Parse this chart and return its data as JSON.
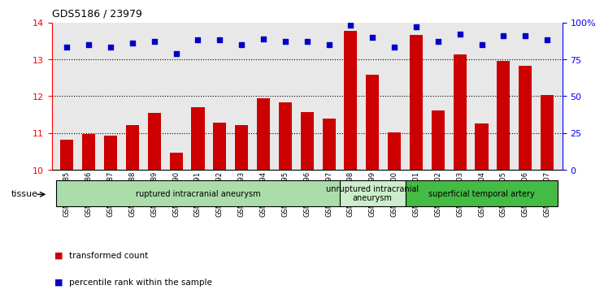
{
  "title": "GDS5186 / 23979",
  "samples": [
    "GSM1306885",
    "GSM1306886",
    "GSM1306887",
    "GSM1306888",
    "GSM1306889",
    "GSM1306890",
    "GSM1306891",
    "GSM1306892",
    "GSM1306893",
    "GSM1306894",
    "GSM1306895",
    "GSM1306896",
    "GSM1306897",
    "GSM1306898",
    "GSM1306899",
    "GSM1306900",
    "GSM1306901",
    "GSM1306902",
    "GSM1306903",
    "GSM1306904",
    "GSM1306905",
    "GSM1306906",
    "GSM1306907"
  ],
  "bar_values": [
    10.82,
    10.98,
    10.92,
    11.22,
    11.55,
    10.46,
    11.7,
    11.28,
    11.22,
    11.93,
    11.82,
    11.57,
    11.38,
    13.78,
    12.57,
    11.02,
    13.65,
    11.6,
    13.12,
    11.25,
    12.95,
    12.82,
    12.03
  ],
  "scatter_values": [
    83,
    85,
    83,
    86,
    87,
    79,
    88,
    88,
    85,
    89,
    87,
    87,
    85,
    98,
    90,
    83,
    97,
    87,
    92,
    85,
    91,
    91,
    88
  ],
  "ylim_left": [
    10,
    14
  ],
  "ylim_right": [
    0,
    100
  ],
  "yticks_left": [
    10,
    11,
    12,
    13,
    14
  ],
  "yticks_right": [
    0,
    25,
    50,
    75,
    100
  ],
  "ytick_labels_right": [
    "0",
    "25",
    "50",
    "75",
    "100%"
  ],
  "bar_color": "#cc0000",
  "scatter_color": "#0000cc",
  "bg_color": "#e8e8e8",
  "plot_bg": "#ffffff",
  "tissue_groups": [
    {
      "label": "ruptured intracranial aneurysm",
      "start": 0,
      "end": 13,
      "color": "#aaddaa"
    },
    {
      "label": "unruptured intracranial\naneurysm",
      "start": 13,
      "end": 16,
      "color": "#cceecc"
    },
    {
      "label": "superficial temporal artery",
      "start": 16,
      "end": 23,
      "color": "#44bb44"
    }
  ],
  "legend_items": [
    {
      "label": "transformed count",
      "color": "#cc0000"
    },
    {
      "label": "percentile rank within the sample",
      "color": "#0000cc"
    }
  ],
  "tissue_label": "tissue"
}
